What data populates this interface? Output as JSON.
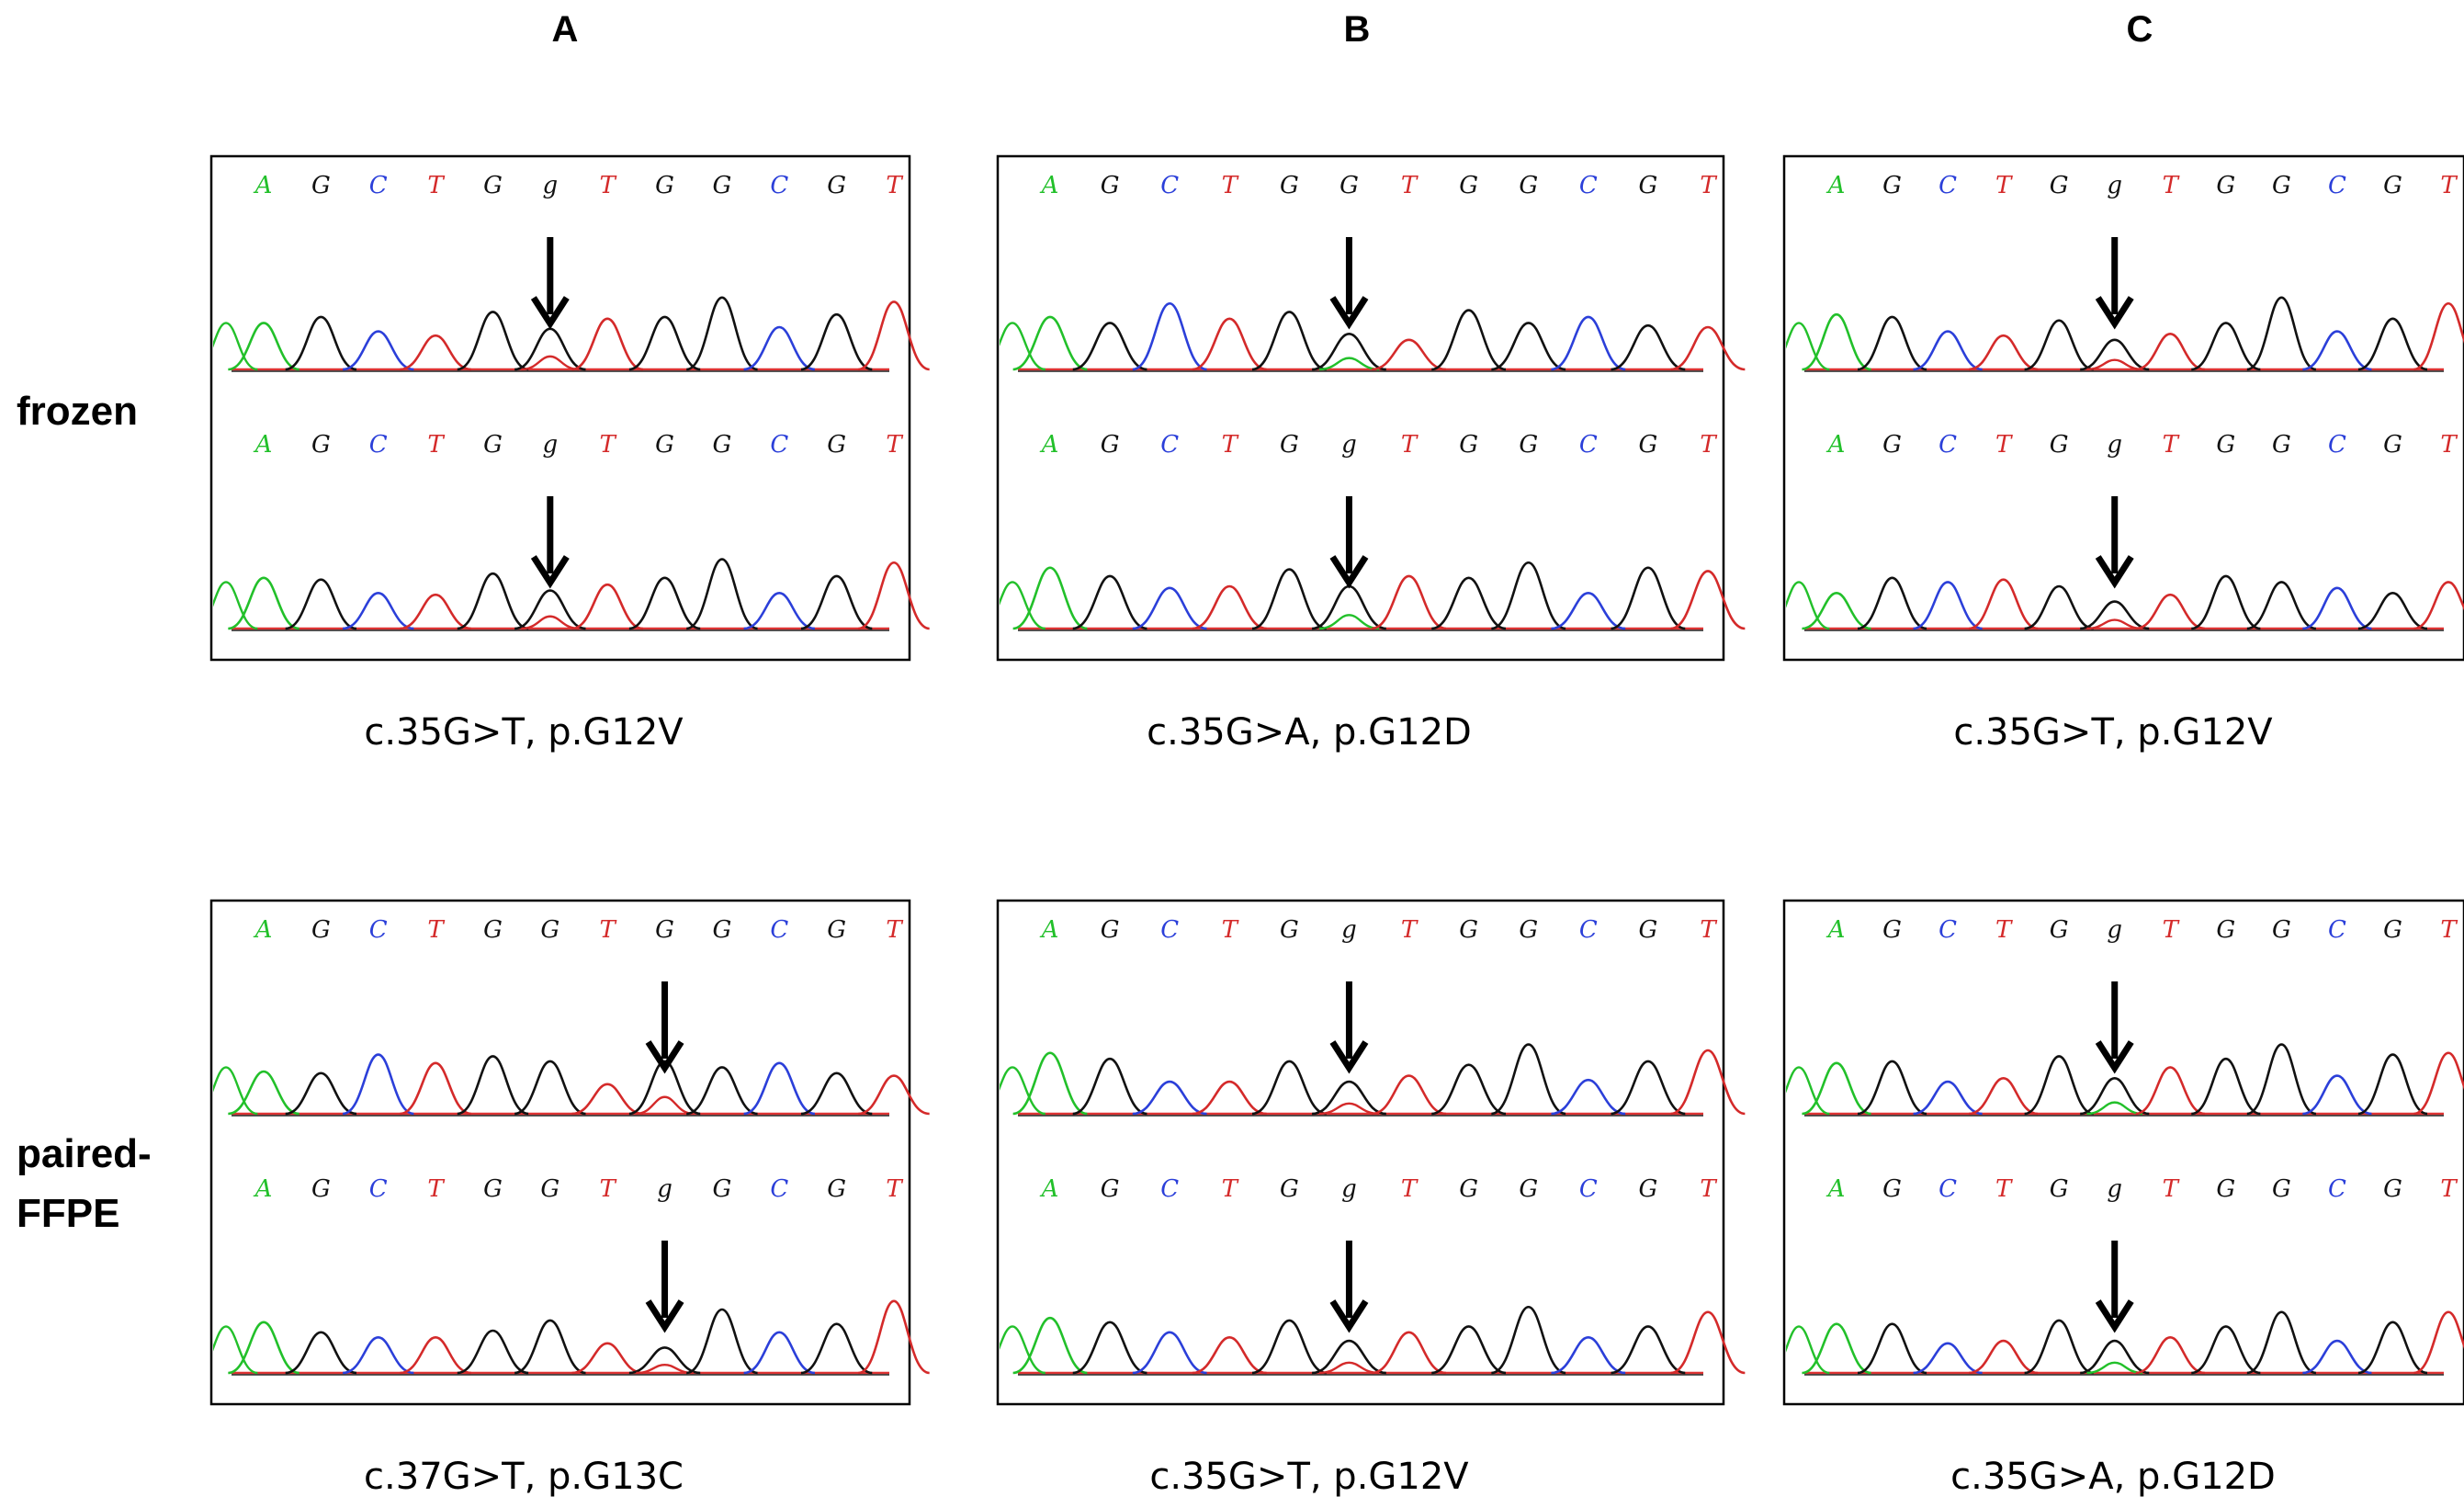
{
  "columns": [
    "A",
    "B",
    "C"
  ],
  "rows": [
    "frozen",
    "paired-\nFFPE"
  ],
  "row_labels": {
    "frozen": "frozen",
    "ffpe_line1": "paired-",
    "ffpe_line2": "FFPE"
  },
  "colors": {
    "A": "#22c02a",
    "C": "#2b3fd9",
    "G": "#111111",
    "T": "#d42a2a",
    "arrow": "#000000",
    "frame": "#000000"
  },
  "panels": [
    {
      "id": "A-frozen",
      "col": "A",
      "row": "frozen",
      "caption": "c.35G>T, p.G12V",
      "traces": [
        {
          "bases": [
            "A",
            "G",
            "C",
            "T",
            "G",
            "g",
            "T",
            "G",
            "G",
            "C",
            "G",
            "T"
          ],
          "arrow_index": 5,
          "heights": [
            0.55,
            0.62,
            0.45,
            0.4,
            0.68,
            0.48,
            0.6,
            0.62,
            0.85,
            0.5,
            0.65,
            0.8
          ],
          "mixed": "T"
        },
        {
          "bases": [
            "A",
            "G",
            "C",
            "T",
            "G",
            "g",
            "T",
            "G",
            "G",
            "C",
            "G",
            "T"
          ],
          "arrow_index": 5,
          "heights": [
            0.6,
            0.58,
            0.42,
            0.4,
            0.65,
            0.45,
            0.52,
            0.6,
            0.82,
            0.42,
            0.62,
            0.78
          ],
          "mixed": "T"
        }
      ]
    },
    {
      "id": "B-frozen",
      "col": "B",
      "row": "frozen",
      "caption": "c.35G>A, p.G12D",
      "traces": [
        {
          "bases": [
            "A",
            "G",
            "C",
            "T",
            "G",
            "G",
            "T",
            "G",
            "G",
            "C",
            "G",
            "T"
          ],
          "arrow_index": 5,
          "heights": [
            0.62,
            0.55,
            0.78,
            0.6,
            0.68,
            0.42,
            0.35,
            0.7,
            0.55,
            0.62,
            0.52,
            0.5
          ],
          "mixed": "A"
        },
        {
          "bases": [
            "A",
            "G",
            "C",
            "T",
            "G",
            "g",
            "T",
            "G",
            "G",
            "C",
            "G",
            "T"
          ],
          "arrow_index": 5,
          "heights": [
            0.72,
            0.62,
            0.48,
            0.5,
            0.7,
            0.5,
            0.62,
            0.6,
            0.78,
            0.42,
            0.72,
            0.68
          ],
          "mixed": "A"
        }
      ]
    },
    {
      "id": "C-frozen",
      "col": "C",
      "row": "frozen",
      "caption": "c.35G>T, p.G12V",
      "traces": [
        {
          "bases": [
            "A",
            "G",
            "C",
            "T",
            "G",
            "g",
            "T",
            "G",
            "G",
            "C",
            "G",
            "T"
          ],
          "arrow_index": 5,
          "heights": [
            0.65,
            0.62,
            0.45,
            0.4,
            0.58,
            0.35,
            0.42,
            0.55,
            0.85,
            0.45,
            0.6,
            0.78
          ],
          "mixed": "T"
        },
        {
          "bases": [
            "A",
            "G",
            "C",
            "T",
            "G",
            "g",
            "T",
            "G",
            "G",
            "C",
            "G",
            "T"
          ],
          "arrow_index": 5,
          "heights": [
            0.42,
            0.6,
            0.55,
            0.58,
            0.5,
            0.32,
            0.4,
            0.62,
            0.55,
            0.48,
            0.42,
            0.55
          ],
          "mixed": "T"
        }
      ]
    },
    {
      "id": "A-ffpe",
      "col": "A",
      "row": "ffpe",
      "caption": "c.37G>T, p.G13C",
      "traces": [
        {
          "bases": [
            "A",
            "G",
            "C",
            "T",
            "G",
            "G",
            "T",
            "G",
            "G",
            "C",
            "G",
            "T"
          ],
          "arrow_index": 7,
          "heights": [
            0.5,
            0.48,
            0.7,
            0.6,
            0.68,
            0.62,
            0.35,
            0.62,
            0.55,
            0.6,
            0.48,
            0.45
          ],
          "mixed": "T"
        },
        {
          "bases": [
            "A",
            "G",
            "C",
            "T",
            "G",
            "G",
            "T",
            "g",
            "G",
            "C",
            "G",
            "T"
          ],
          "arrow_index": 7,
          "heights": [
            0.6,
            0.48,
            0.42,
            0.42,
            0.5,
            0.62,
            0.35,
            0.3,
            0.75,
            0.48,
            0.58,
            0.85
          ],
          "mixed": "T"
        }
      ]
    },
    {
      "id": "B-ffpe",
      "col": "B",
      "row": "ffpe",
      "caption": "c.35G>T, p.G12V",
      "traces": [
        {
          "bases": [
            "A",
            "G",
            "C",
            "T",
            "G",
            "g",
            "T",
            "G",
            "G",
            "C",
            "G",
            "T"
          ],
          "arrow_index": 5,
          "heights": [
            0.72,
            0.65,
            0.38,
            0.38,
            0.62,
            0.38,
            0.45,
            0.58,
            0.82,
            0.4,
            0.62,
            0.75
          ],
          "mixed": "T"
        },
        {
          "bases": [
            "A",
            "G",
            "C",
            "T",
            "G",
            "g",
            "T",
            "G",
            "G",
            "C",
            "G",
            "T"
          ],
          "arrow_index": 5,
          "heights": [
            0.65,
            0.6,
            0.48,
            0.42,
            0.62,
            0.38,
            0.48,
            0.55,
            0.78,
            0.42,
            0.55,
            0.72
          ],
          "mixed": "T"
        }
      ]
    },
    {
      "id": "C-ffpe",
      "col": "C",
      "row": "ffpe",
      "caption": "c.35G>A, p.G12D",
      "traces": [
        {
          "bases": [
            "A",
            "G",
            "C",
            "T",
            "G",
            "g",
            "T",
            "G",
            "G",
            "C",
            "G",
            "T"
          ],
          "arrow_index": 5,
          "heights": [
            0.6,
            0.62,
            0.38,
            0.42,
            0.68,
            0.42,
            0.55,
            0.65,
            0.82,
            0.45,
            0.7,
            0.72
          ],
          "mixed": "A"
        },
        {
          "bases": [
            "A",
            "G",
            "C",
            "T",
            "G",
            "g",
            "T",
            "G",
            "G",
            "C",
            "G",
            "T"
          ],
          "arrow_index": 5,
          "heights": [
            0.58,
            0.58,
            0.35,
            0.38,
            0.62,
            0.38,
            0.42,
            0.55,
            0.72,
            0.38,
            0.6,
            0.72
          ],
          "mixed": "A"
        }
      ]
    }
  ]
}
